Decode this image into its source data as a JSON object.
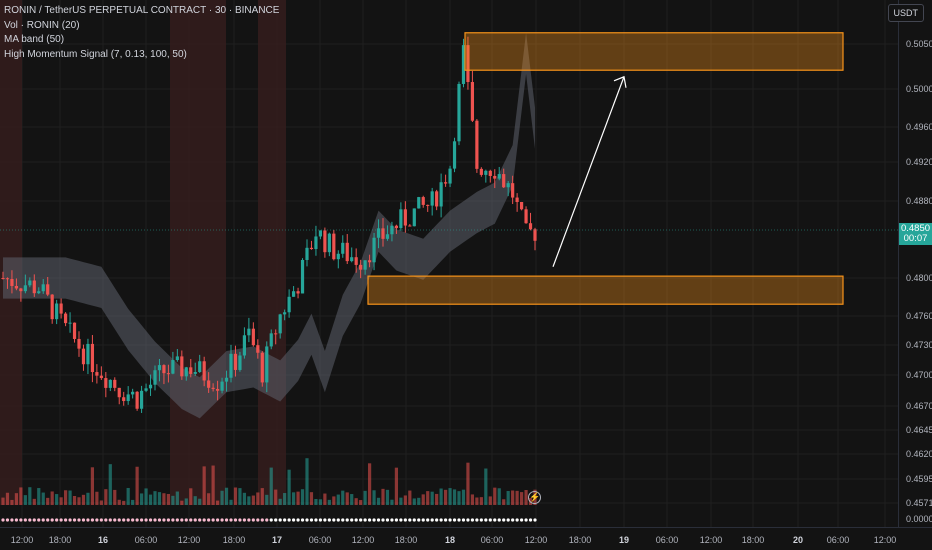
{
  "legend": {
    "title": "RONIN / TetherUS PERPETUAL CONTRACT · 30 · BINANCE",
    "vol": "Vol · RONIN (20)",
    "maband": "MA band (50)",
    "hms": "High Momentum Signal (7, 0.13, 100, 50)"
  },
  "unit_button": "USDT",
  "last_price": {
    "value": "0.4850",
    "countdown": "00:07"
  },
  "colors": {
    "up": "#26a69a",
    "down": "#ef5350",
    "zone": "#f7931a",
    "band": "#5d606b",
    "background": "#131313"
  },
  "chart_data": {
    "type": "candlestick",
    "y_ticks": [
      "0.5050",
      "0.5000",
      "0.4960",
      "0.4920",
      "0.4880",
      "0.4800",
      "0.4760",
      "0.4730",
      "0.4700",
      "0.4670",
      "0.4645",
      "0.4620",
      "0.4595",
      "0.4571",
      "0.0000"
    ],
    "x_ticks": [
      "12:00",
      "18:00",
      "16",
      "06:00",
      "12:00",
      "18:00",
      "17",
      "06:00",
      "12:00",
      "18:00",
      "18",
      "06:00",
      "12:00",
      "18:00",
      "19",
      "06:00",
      "12:00",
      "18:00",
      "20",
      "06:00",
      "12:00"
    ],
    "last_price": 0.485,
    "zones": [
      {
        "name": "target-zone",
        "from": 0.5022,
        "to": 0.5062
      },
      {
        "name": "support-zone",
        "from": 0.4772,
        "to": 0.4802
      }
    ],
    "arrow": {
      "from_time": "18 13:00",
      "from_price": 0.4812,
      "to_time": "18 20:00",
      "to_price": 0.5015
    },
    "series": []
  }
}
